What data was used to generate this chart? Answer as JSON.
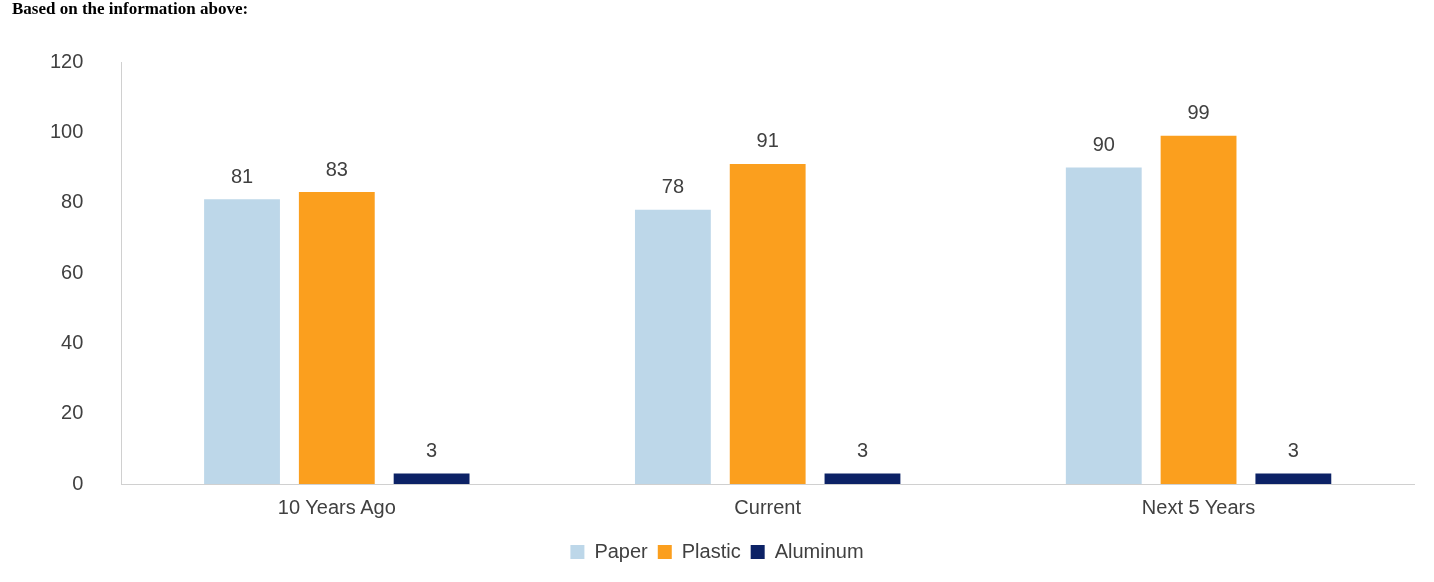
{
  "chart_data": {
    "type": "bar",
    "title": "Based on the information above:",
    "categories": [
      "10 Years Ago",
      "Current",
      "Next 5 Years"
    ],
    "series": [
      {
        "name": "Paper",
        "color": "#bdd7e9",
        "values": [
          81,
          78,
          90
        ]
      },
      {
        "name": "Plastic",
        "color": "#fb9f1e",
        "values": [
          83,
          91,
          99
        ]
      },
      {
        "name": "Aluminum",
        "color": "#0c2266",
        "values": [
          3,
          3,
          3
        ]
      }
    ],
    "ylim": [
      0,
      120
    ],
    "yticks": [
      0,
      20,
      40,
      60,
      80,
      100,
      120
    ],
    "grid": false,
    "legend": "bottom",
    "data_labels": true
  }
}
